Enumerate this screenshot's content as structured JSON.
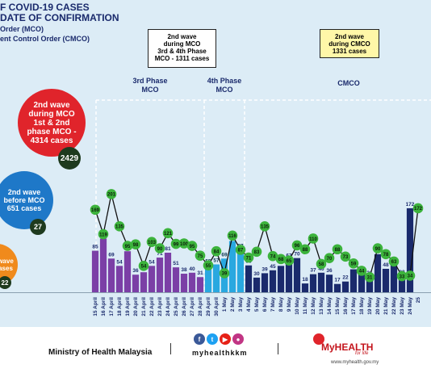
{
  "header": {
    "title_line1": "F COVID-19 CASES",
    "title_line2": "DATE OF CONFIRMATION",
    "legend_line1": "Order (MCO)",
    "legend_line2": "ent Control Order (CMCO)"
  },
  "callouts": {
    "mco34": {
      "line1": "2nd wave",
      "line2": "during MCO",
      "line3": "3rd & 4th Phase",
      "line4": "MCO - 1311 cases"
    },
    "cmco": {
      "line1": "2nd wave",
      "line2": "during CMCO",
      "line3": "1331 cases"
    }
  },
  "phases": {
    "p3_line1": "3rd Phase",
    "p3_line2": "MCO",
    "p4_line1": "4th Phase",
    "p4_line2": "MCO",
    "cmco": "CMCO"
  },
  "circles": {
    "red": {
      "line1": "2nd wave",
      "line2": "during MCO",
      "line3": "1st & 2nd",
      "line4": "phase MCO -",
      "line5": "4314 cases",
      "badge": "2429"
    },
    "blue": {
      "line1": "2nd wave",
      "line2": "before MCO",
      "line3": "651 cases",
      "badge": "27"
    },
    "orange": {
      "line1": "wave",
      "line2": "ases",
      "badge": "22"
    }
  },
  "chart_data": {
    "type": "bar",
    "title": "",
    "categories": [
      "15 April",
      "16 April",
      "17 April",
      "18 April",
      "19 April",
      "20 April",
      "21 April",
      "22 April",
      "23 April",
      "24 April",
      "25 April",
      "26 April",
      "27 April",
      "28 April",
      "29 April",
      "30 April",
      "1 May",
      "2 May",
      "3 May",
      "4 May",
      "5 May",
      "6 May",
      "7 May",
      "8 May",
      "9 May",
      "10 May",
      "11 May",
      "12 May",
      "13 May",
      "14 May",
      "15 May",
      "16 May",
      "17 May",
      "18 May",
      "19 May",
      "20 May",
      "21 May",
      "22 May",
      "23 May",
      "24 May",
      "25"
    ],
    "phase_of_category": [
      "p3",
      "p3",
      "p3",
      "p3",
      "p3",
      "p3",
      "p3",
      "p3",
      "p3",
      "p3",
      "p3",
      "p3",
      "p3",
      "p3",
      "p4",
      "p4",
      "p4",
      "p4",
      "p4",
      "cmco",
      "cmco",
      "cmco",
      "cmco",
      "cmco",
      "cmco",
      "cmco",
      "cmco",
      "cmco",
      "cmco",
      "cmco",
      "cmco",
      "cmco",
      "cmco",
      "cmco",
      "cmco",
      "cmco",
      "cmco",
      "cmco",
      "cmco",
      "cmco",
      "cmco"
    ],
    "series": [
      {
        "type": "bar",
        "values": [
          85,
          110,
          69,
          54,
          84,
          36,
          41,
          54,
          71,
          81,
          51,
          38,
          40,
          31,
          55,
          57,
          69,
          105,
          87,
          55,
          30,
          39,
          45,
          54,
          67,
          70,
          18,
          37,
          40,
          36,
          17,
          22,
          47,
          37,
          31,
          78,
          48,
          60,
          33,
          172,
          null
        ]
      },
      {
        "type": "line",
        "values": [
          169,
          119,
          201,
          135,
          95,
          98,
          54,
          103,
          90,
          121,
          99,
          100,
          95,
          75,
          55,
          84,
          39,
          116,
          87,
          71,
          83,
          135,
          74,
          68,
          65,
          96,
          88,
          110,
          58,
          70,
          88,
          73,
          59,
          44,
          31,
          90,
          78,
          63,
          33,
          34,
          172
        ]
      }
    ],
    "colors": {
      "p3": "#7b3fa6",
      "p4": "#29a8e0",
      "cmco": "#1a2a6c",
      "line_badge": "#3cb33c",
      "line": "#111111"
    }
  },
  "footer": {
    "ministry": "Ministry of Health Malaysia",
    "handle": "myhealthkkm",
    "brand": "MyHEALTH",
    "brand_sub": "for life",
    "site": "www.myhealth.gov.my"
  }
}
